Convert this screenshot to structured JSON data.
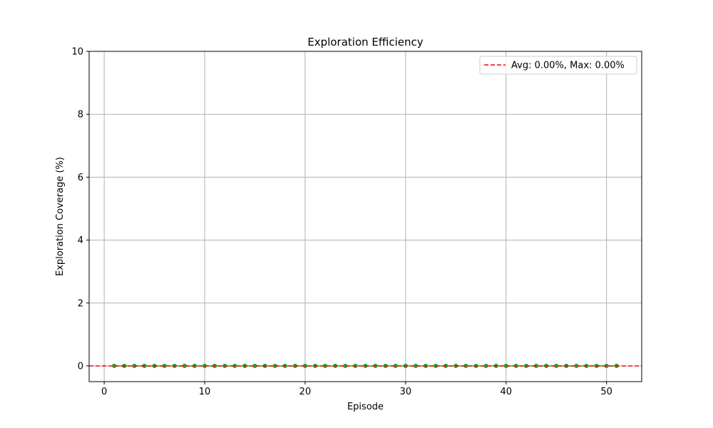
{
  "chart_data": {
    "type": "line",
    "title": "Exploration Efficiency",
    "xlabel": "Episode",
    "ylabel": "Exploration Coverage (%)",
    "xlim": [
      -1.5,
      53.5
    ],
    "ylim": [
      -0.5,
      10
    ],
    "xticks": [
      0,
      10,
      20,
      30,
      40,
      50
    ],
    "yticks": [
      0,
      2,
      4,
      6,
      8,
      10
    ],
    "grid": true,
    "series": [
      {
        "x": [
          1,
          2,
          3,
          4,
          5,
          6,
          7,
          8,
          9,
          10,
          11,
          12,
          13,
          14,
          15,
          16,
          17,
          18,
          19,
          20,
          21,
          22,
          23,
          24,
          25,
          26,
          27,
          28,
          29,
          30,
          31,
          32,
          33,
          34,
          35,
          36,
          37,
          38,
          39,
          40,
          41,
          42,
          43,
          44,
          45,
          46,
          47,
          48,
          49,
          50,
          51
        ],
        "values": [
          0,
          0,
          0,
          0,
          0,
          0,
          0,
          0,
          0,
          0,
          0,
          0,
          0,
          0,
          0,
          0,
          0,
          0,
          0,
          0,
          0,
          0,
          0,
          0,
          0,
          0,
          0,
          0,
          0,
          0,
          0,
          0,
          0,
          0,
          0,
          0,
          0,
          0,
          0,
          0,
          0,
          0,
          0,
          0,
          0,
          0,
          0,
          0,
          0,
          0,
          0
        ],
        "color": "#2ca02c",
        "marker": "circle"
      }
    ],
    "reference_line": {
      "y": 0,
      "label": "Avg: 0.00%, Max: 0.00%",
      "color": "#ff0000",
      "style": "dashed"
    },
    "legend_position": "top-right"
  }
}
